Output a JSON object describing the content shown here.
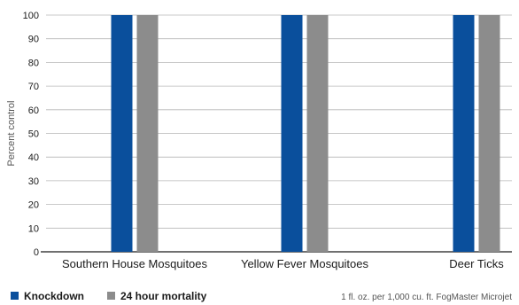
{
  "chart_data": {
    "type": "bar",
    "categories": [
      "Southern House Mosquitoes",
      "Yellow Fever Mosquitoes",
      "Deer Ticks"
    ],
    "series": [
      {
        "name": "Knockdown",
        "values": [
          100,
          100,
          100
        ],
        "color": "#0a4f9c"
      },
      {
        "name": "24 hour mortality",
        "values": [
          100,
          100,
          100
        ],
        "color": "#8c8c8c"
      }
    ],
    "ylabel": "Percent control",
    "ylim": [
      0,
      100
    ],
    "yticks": [
      0,
      10,
      20,
      30,
      40,
      50,
      60,
      70,
      80,
      90,
      100
    ],
    "grid": true,
    "legend_position": "bottom-left",
    "note": "1 fl. oz. per 1,000 cu. ft. FogMaster Microjet"
  }
}
